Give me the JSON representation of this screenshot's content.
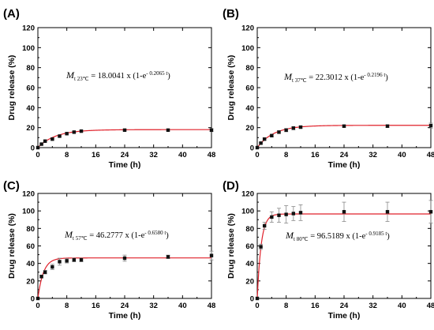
{
  "chart_data": [
    {
      "type": "scatter",
      "panel": "(A)",
      "xlabel": "Time (h)",
      "ylabel": "Drug release (%)",
      "xlim": [
        0,
        48
      ],
      "ylim": [
        0,
        120
      ],
      "xticks": [
        "0",
        "8",
        "16",
        "24",
        "32",
        "40",
        "48"
      ],
      "yticks": [
        "0",
        "20",
        "40",
        "60",
        "80",
        "100",
        "120"
      ],
      "equation": {
        "M": "M",
        "sub": "t 23℃",
        "text": " = 18.0041 x (1-e",
        "exp": "- 0.2065 t",
        "close": ")"
      },
      "fit": {
        "a": 18.0041,
        "k": 0.2065
      },
      "x": [
        0,
        1,
        2,
        4,
        6,
        8,
        10,
        12,
        24,
        36,
        48
      ],
      "y": [
        0,
        3.5,
        6.5,
        8.5,
        11.5,
        14,
        15.5,
        16.5,
        17.5,
        17.5,
        17.5
      ],
      "err": [
        0,
        0.5,
        0.5,
        0.6,
        0.6,
        0.7,
        0.7,
        0.7,
        0.8,
        0.8,
        1.5
      ]
    },
    {
      "type": "scatter",
      "panel": "(B)",
      "xlabel": "Time (h)",
      "ylabel": "Drug release (%)",
      "xlim": [
        0,
        48
      ],
      "ylim": [
        0,
        120
      ],
      "xticks": [
        "0",
        "8",
        "16",
        "24",
        "32",
        "40",
        "48"
      ],
      "yticks": [
        "0",
        "20",
        "40",
        "60",
        "80",
        "100",
        "120"
      ],
      "equation": {
        "M": "M",
        "sub": "t 37℃",
        "text": " = 22.3012 x (1-e",
        "exp": "- 0.2196 t",
        "close": ")"
      },
      "fit": {
        "a": 22.3012,
        "k": 0.2196
      },
      "x": [
        0,
        1,
        2,
        4,
        6,
        8,
        10,
        12,
        24,
        36,
        48
      ],
      "y": [
        0,
        4.5,
        8.5,
        12,
        15.5,
        17.5,
        19.5,
        20.5,
        21.5,
        21.5,
        22
      ],
      "err": [
        0,
        0.7,
        1,
        1.2,
        1.3,
        1.6,
        1.6,
        1.2,
        1,
        1.2,
        2.5
      ]
    },
    {
      "type": "scatter",
      "panel": "(C)",
      "xlabel": "Time (h)",
      "ylabel": "Drug release (%)",
      "xlim": [
        0,
        48
      ],
      "ylim": [
        0,
        120
      ],
      "xticks": [
        "0",
        "8",
        "16",
        "24",
        "32",
        "40",
        "48"
      ],
      "yticks": [
        "0",
        "20",
        "40",
        "60",
        "80",
        "100",
        "120"
      ],
      "equation": {
        "M": "M",
        "sub": "t 57℃",
        "text": " = 46.2777 x (1-e",
        "exp": "- 0.6580 t",
        "close": ")"
      },
      "fit": {
        "a": 46.2777,
        "k": 0.658
      },
      "x": [
        0,
        1,
        2,
        4,
        6,
        8,
        10,
        12,
        24,
        36,
        48
      ],
      "y": [
        0,
        25,
        30,
        36,
        42,
        43,
        44,
        44,
        46,
        47.5,
        49
      ],
      "err": [
        0,
        1.5,
        2,
        3,
        4,
        2.5,
        2,
        2,
        3.5,
        2,
        5
      ]
    },
    {
      "type": "scatter",
      "panel": "(D)",
      "xlabel": "Time (h)",
      "ylabel": "Drug release (%)",
      "xlim": [
        0,
        48
      ],
      "ylim": [
        0,
        120
      ],
      "xticks": [
        "0",
        "8",
        "16",
        "24",
        "32",
        "40",
        "48"
      ],
      "yticks": [
        "0",
        "20",
        "40",
        "60",
        "80",
        "100",
        "120"
      ],
      "equation": {
        "M": "M",
        "sub": "t 80℃",
        "text": " = 96.5189 x (1-e",
        "exp": "- 0.9185 t",
        "close": ")"
      },
      "fit": {
        "a": 96.5189,
        "k": 0.9185
      },
      "x": [
        0,
        1,
        2,
        4,
        6,
        8,
        10,
        12,
        24,
        36,
        48
      ],
      "y": [
        0,
        59,
        83,
        93,
        95,
        96,
        97,
        98,
        99,
        99,
        99
      ],
      "err": [
        0,
        3,
        4,
        6,
        8,
        10,
        8,
        9,
        11,
        11,
        13
      ]
    }
  ]
}
